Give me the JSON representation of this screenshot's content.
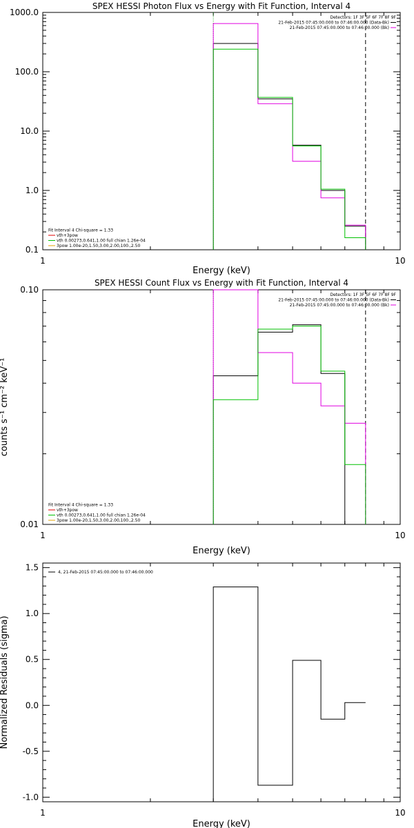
{
  "chart_data": [
    {
      "id": "photon",
      "type": "step-line",
      "title": "SPEX HESSI Photon Flux vs Energy with Fit Function, Interval 4",
      "xlabel": "Energy (keV)",
      "ylabel": "",
      "xscale": "log",
      "yscale": "log",
      "xlim": [
        1,
        10
      ],
      "ylim": [
        0.1,
        1000
      ],
      "x_tick_labels": [
        "1",
        "10"
      ],
      "y_tick_labels": [
        "0.1",
        "1.0",
        "10.0",
        "100.0",
        "1000.0"
      ],
      "bin_edges": [
        3,
        4,
        5,
        6,
        7,
        8
      ],
      "vlines": [
        {
          "x": 3,
          "color": "#00a000",
          "style": "dotted"
        },
        {
          "x": 8,
          "color": "#000000",
          "style": "dashed"
        }
      ],
      "series": [
        {
          "color": "#000000",
          "values": [
            300,
            35,
            5.8,
            1.0,
            0.25
          ]
        },
        {
          "color": "#e000e0",
          "values": [
            650,
            29,
            3.1,
            0.75,
            0.26
          ]
        },
        {
          "color": "#00c000",
          "values": [
            240,
            37,
            5.6,
            1.05,
            0.16
          ]
        }
      ],
      "legend_top": {
        "position": "top-right",
        "lines": [
          {
            "text": "Detectors: 1F 3F 5F 6F 7F 8F 9F",
            "color": ""
          },
          {
            "text": "21-Feb-2015 07:45:00.000 to 07:46:00.000 (Data-Bk)",
            "color": "#000000"
          },
          {
            "text": "21-Feb-2015 07:45:00.000 to 07:46:00.000 (Bk)",
            "color": "#e000e0"
          }
        ]
      },
      "legend_bottom": {
        "position": "bottom-left",
        "lines": [
          {
            "text": "Fit Interval 4   Chi-square = 1.33",
            "color": ""
          },
          {
            "text": "vth+3pow",
            "color": "#e00000"
          },
          {
            "text": "vth 0.00273,0.641,1.00  full chian 1.26e-04",
            "color": "#00c000"
          },
          {
            "text": "3pow 1.00e-20,1.50,3.00,2.00,100.,2.50",
            "color": "#e0a000"
          }
        ]
      }
    },
    {
      "id": "count",
      "type": "step-line",
      "title": "SPEX HESSI Count Flux vs Energy with Fit Function, Interval 4",
      "xlabel": "Energy (keV)",
      "ylabel": "counts s⁻¹ cm⁻² keV⁻¹",
      "xscale": "log",
      "yscale": "log",
      "xlim": [
        1,
        10
      ],
      "ylim": [
        0.01,
        0.1
      ],
      "x_tick_labels": [
        "1",
        "10"
      ],
      "y_tick_labels": [
        "0.01",
        "0.10"
      ],
      "bin_edges": [
        3,
        4,
        5,
        6,
        7,
        8
      ],
      "vlines": [
        {
          "x": 3,
          "color": "#00a000",
          "style": "dotted"
        },
        {
          "x": 8,
          "color": "#000000",
          "style": "dashed"
        }
      ],
      "series": [
        {
          "color": "#000000",
          "values": [
            0.043,
            0.066,
            0.071,
            0.044,
            0.0
          ]
        },
        {
          "color": "#e000e0",
          "values": [
            0.1,
            0.054,
            0.04,
            0.032,
            0.027
          ]
        },
        {
          "color": "#00c000",
          "values": [
            0.034,
            0.068,
            0.07,
            0.045,
            0.018
          ]
        }
      ],
      "legend_top": {
        "position": "top-right",
        "lines": [
          {
            "text": "Detectors: 1F 3F 5F 6F 7F 8F 9F",
            "color": ""
          },
          {
            "text": "21-Feb-2015 07:45:00.000 to 07:46:00.000 (Data-Bk)",
            "color": "#000000"
          },
          {
            "text": "21-Feb-2015 07:45:00.000 to 07:46:00.000 (Bk)",
            "color": "#e000e0"
          }
        ]
      },
      "legend_bottom": {
        "position": "bottom-left",
        "lines": [
          {
            "text": "Fit Interval 4   Chi-square = 1.33",
            "color": ""
          },
          {
            "text": "vth+3pow",
            "color": "#e00000"
          },
          {
            "text": "vth 0.00273,0.641,1.00  full chian 1.26e-04",
            "color": "#00c000"
          },
          {
            "text": "3pow 1.00e-20,1.50,3.00,2.00,100.,2.50",
            "color": "#e0a000"
          }
        ]
      }
    },
    {
      "id": "resid",
      "type": "step-line",
      "title": "",
      "xlabel": "Energy (keV)",
      "ylabel": "Normalized Residuals (sigma)",
      "xscale": "log",
      "yscale": "linear",
      "xlim": [
        1,
        10
      ],
      "ylim": [
        -1.05,
        1.55
      ],
      "x_tick_labels": [
        "1",
        "10"
      ],
      "y_tick_values": [
        -1.0,
        -0.5,
        0.0,
        0.5,
        1.0,
        1.5
      ],
      "y_tick_labels": [
        "-1.0",
        "-0.5",
        "0.0",
        "0.5",
        "1.0",
        "1.5"
      ],
      "bin_edges": [
        3,
        4,
        5,
        6,
        7,
        8
      ],
      "vlines": [],
      "series": [
        {
          "color": "#000000",
          "values": [
            1.29,
            -0.87,
            0.49,
            -0.15,
            0.03
          ]
        }
      ],
      "legend_top": {
        "position": "top-left",
        "lines": [
          {
            "text": "4, 21-Feb-2015 07:45:00.000 to 07:46:00.000",
            "color": "#000000"
          }
        ]
      },
      "legend_bottom": {
        "position": "",
        "lines": []
      }
    }
  ]
}
